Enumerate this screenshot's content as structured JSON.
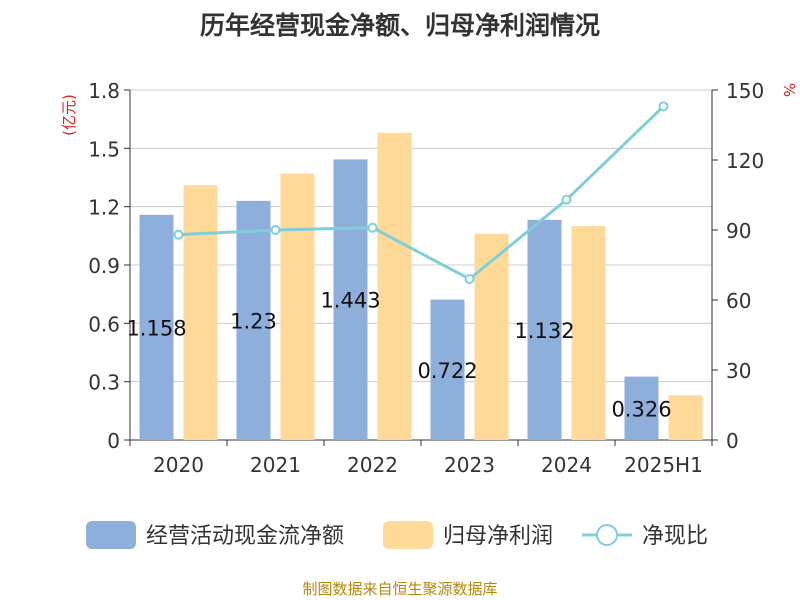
{
  "title": "历年经营现金净额、归母净利润情况",
  "source": "制图数据来自恒生聚源数据库",
  "colors": {
    "cash": "#8eaedb",
    "profit": "#fed998",
    "ratio": "#7fcfd8",
    "unitLabel": "#dd2222",
    "axis": "#333333",
    "grid": "#cccccc",
    "source": "#b8860b"
  },
  "chart_data": {
    "type": "bar",
    "categories": [
      "2020",
      "2021",
      "2022",
      "2023",
      "2024",
      "2025H1"
    ],
    "y_left": {
      "label": "(亿元)",
      "ylim": [
        0,
        1.8
      ],
      "ticks": [
        "0",
        "0.3",
        "0.6",
        "0.9",
        "1.2",
        "1.5",
        "1.8"
      ]
    },
    "y_right": {
      "label": "%",
      "ylim": [
        0,
        150
      ],
      "ticks": [
        "0",
        "30",
        "60",
        "90",
        "120",
        "150"
      ]
    },
    "series": [
      {
        "name": "经营活动现金流净额",
        "type": "bar",
        "axis": "left",
        "values": [
          1.158,
          1.23,
          1.443,
          0.722,
          1.132,
          0.326
        ],
        "labels": [
          "1.158",
          "1.23",
          "1.443",
          "0.722",
          "1.132",
          "0.326"
        ]
      },
      {
        "name": "归母净利润",
        "type": "bar",
        "axis": "left",
        "values": [
          1.31,
          1.37,
          1.58,
          1.06,
          1.1,
          0.23
        ]
      },
      {
        "name": "净现比",
        "type": "line",
        "axis": "right",
        "values": [
          88,
          90,
          91,
          69,
          103,
          143
        ]
      }
    ],
    "grid": true,
    "legend": "bottom"
  }
}
